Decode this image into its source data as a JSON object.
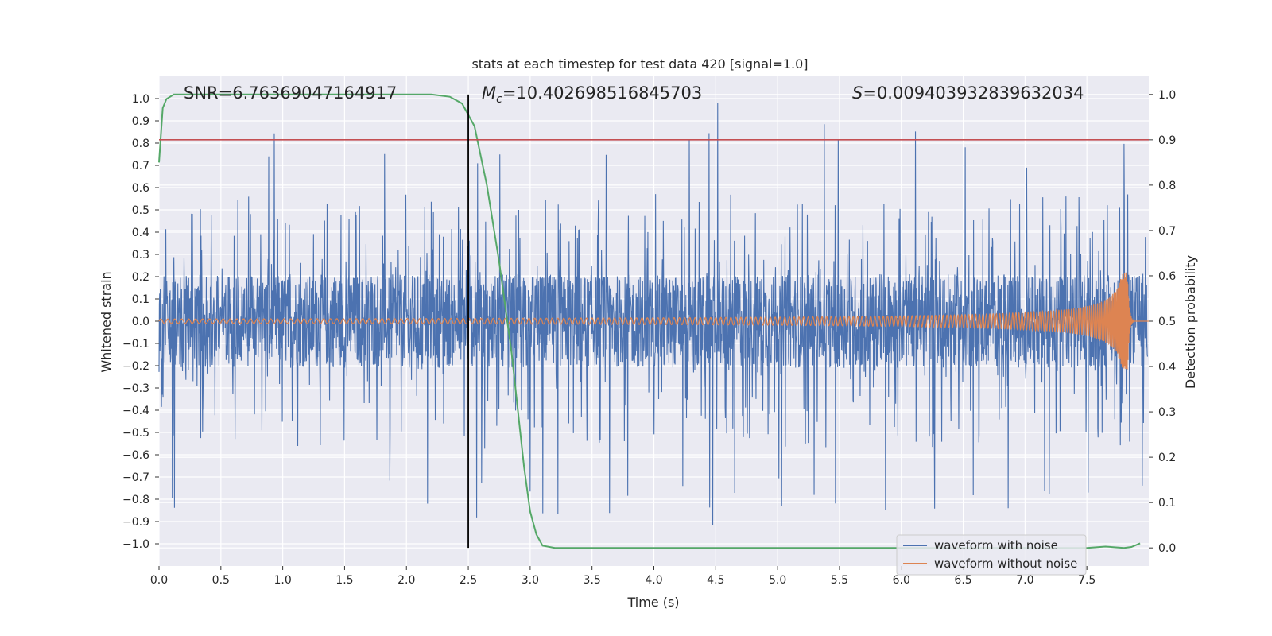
{
  "chart_data": {
    "type": "line",
    "title": "stats at each timestep for test data 420 [signal=1.0]",
    "xlabel": "Time (s)",
    "ylabel": "Whitened strain",
    "y2label": "Detection probability",
    "xlim": [
      0.0,
      8.0
    ],
    "ylim": [
      -1.1,
      1.1
    ],
    "y2lim": [
      -0.04,
      1.04
    ],
    "x_ticks": [
      "0.0",
      "0.5",
      "1.0",
      "1.5",
      "2.0",
      "2.5",
      "3.0",
      "3.5",
      "4.0",
      "4.5",
      "5.0",
      "5.5",
      "6.0",
      "6.5",
      "7.0",
      "7.5"
    ],
    "y_ticks": [
      "1.0",
      "0.9",
      "0.8",
      "0.7",
      "0.6",
      "0.5",
      "0.4",
      "0.3",
      "0.2",
      "0.1",
      "0.0",
      "−0.1",
      "−0.2",
      "−0.3",
      "−0.4",
      "−0.5",
      "−0.6",
      "−0.7",
      "−0.8",
      "−0.9",
      "−1.0"
    ],
    "y2_ticks": [
      "1.0",
      "0.9",
      "0.8",
      "0.7",
      "0.6",
      "0.5",
      "0.4",
      "0.3",
      "0.2",
      "0.1",
      "0.0"
    ],
    "grid": true,
    "legend_position": "bottom-right",
    "annotations": {
      "snr": "SNR=6.76369047164917",
      "mc_symbol": "M",
      "mc_sub": "c",
      "mc_value": "=10.402698516845703",
      "s_symbol": "S",
      "s_value": "=0.009403932839632034"
    },
    "vertical_line_x": 2.5,
    "threshold_y2": 0.9,
    "series": [
      {
        "name": "waveform with noise",
        "color": "#4c72b0",
        "axis": "left",
        "envelope_x": [
          0.0,
          0.5,
          1.0,
          1.5,
          2.0,
          2.5,
          3.0,
          3.5,
          4.0,
          4.5,
          5.0,
          5.5,
          6.0,
          6.5,
          7.0,
          7.5,
          7.99
        ],
        "envelope_upper": [
          0.72,
          0.9,
          0.85,
          0.78,
          0.8,
          0.75,
          0.84,
          0.78,
          0.8,
          1.0,
          0.8,
          0.96,
          0.86,
          0.92,
          0.85,
          0.9,
          0.75
        ],
        "envelope_lower": [
          -0.84,
          -0.95,
          -0.85,
          -0.92,
          -0.85,
          -0.88,
          -0.92,
          -0.88,
          -0.9,
          -0.92,
          -0.88,
          -0.95,
          -0.92,
          -0.9,
          -0.9,
          -0.95,
          -0.8
        ]
      },
      {
        "name": "waveform without noise",
        "color": "#dd8452",
        "axis": "left",
        "chirp_start_amplitude": 0.01,
        "chirp_peak_amplitude": 0.22,
        "merger_time": 7.83,
        "ringdown_end": 7.88
      },
      {
        "name": "detection probability",
        "color": "#55a868",
        "axis": "right",
        "x": [
          0.0,
          0.03,
          0.06,
          0.12,
          2.0,
          2.2,
          2.35,
          2.45,
          2.55,
          2.65,
          2.75,
          2.85,
          2.95,
          3.0,
          3.05,
          3.1,
          3.2,
          7.5,
          7.65,
          7.8,
          7.86,
          7.93
        ],
        "y": [
          0.85,
          0.97,
          0.99,
          1.0,
          1.0,
          1.0,
          0.995,
          0.98,
          0.93,
          0.8,
          0.63,
          0.43,
          0.18,
          0.08,
          0.03,
          0.005,
          0.0,
          0.0,
          0.003,
          0.0,
          0.002,
          0.01
        ]
      }
    ]
  }
}
